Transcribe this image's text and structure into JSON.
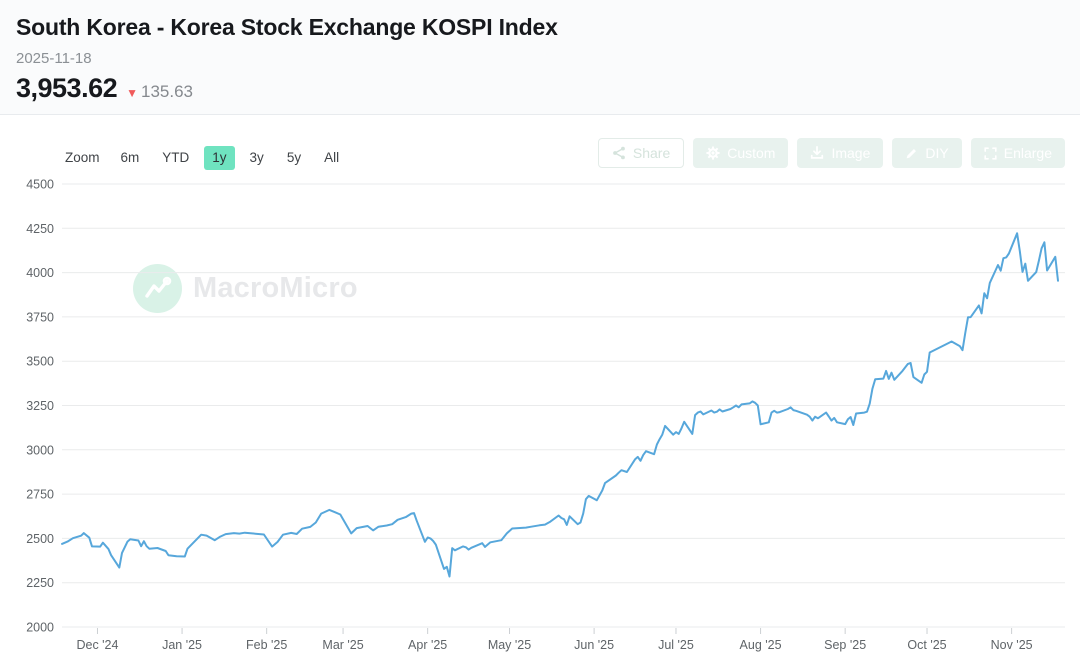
{
  "header": {
    "title": "South Korea - Korea Stock Exchange KOSPI Index",
    "date": "2025-11-18",
    "value": "3,953.62",
    "change_arrow": "▼",
    "change_value": "135.63",
    "change_color": "#f05a5a"
  },
  "toolbar": {
    "zoom_label": "Zoom",
    "ranges": [
      {
        "label": "6m",
        "active": false
      },
      {
        "label": "YTD",
        "active": false
      },
      {
        "label": "1y",
        "active": true
      },
      {
        "label": "3y",
        "active": false
      },
      {
        "label": "5y",
        "active": false
      },
      {
        "label": "All",
        "active": false
      }
    ],
    "active_range_color": "#6fe3c0"
  },
  "actions": [
    {
      "label": "Share",
      "icon": "share-icon"
    },
    {
      "label": "Custom",
      "icon": "gear-icon"
    },
    {
      "label": "Image",
      "icon": "download-icon"
    },
    {
      "label": "DIY",
      "icon": "pencil-icon"
    },
    {
      "label": "Enlarge",
      "icon": "expand-icon"
    }
  ],
  "watermark": {
    "text": "MacroMicro"
  },
  "chart_data": {
    "type": "line",
    "title": "South Korea - Korea Stock Exchange KOSPI Index",
    "xlabel": "",
    "ylabel": "",
    "ylim": [
      2000,
      4500
    ],
    "y_ticks": [
      4500,
      4250,
      4000,
      3750,
      3500,
      3250,
      3000,
      2750,
      2500,
      2250,
      2000
    ],
    "x_range": [
      "2024-11-18",
      "2025-11-18"
    ],
    "x_ticks": [
      {
        "date": "2024-12-01",
        "label": "Dec '24"
      },
      {
        "date": "2025-01-01",
        "label": "Jan '25"
      },
      {
        "date": "2025-02-01",
        "label": "Feb '25"
      },
      {
        "date": "2025-03-01",
        "label": "Mar '25"
      },
      {
        "date": "2025-04-01",
        "label": "Apr '25"
      },
      {
        "date": "2025-05-01",
        "label": "May '25"
      },
      {
        "date": "2025-06-01",
        "label": "Jun '25"
      },
      {
        "date": "2025-07-01",
        "label": "Jul '25"
      },
      {
        "date": "2025-08-01",
        "label": "Aug '25"
      },
      {
        "date": "2025-09-01",
        "label": "Sep '25"
      },
      {
        "date": "2025-10-01",
        "label": "Oct '25"
      },
      {
        "date": "2025-11-01",
        "label": "Nov '25"
      }
    ],
    "grid": true,
    "legend": false,
    "series": [
      {
        "name": "KOSPI Index",
        "color": "#57a7db",
        "points": [
          [
            "2024-11-18",
            2469
          ],
          [
            "2024-11-20",
            2482
          ],
          [
            "2024-11-22",
            2501
          ],
          [
            "2024-11-25",
            2515
          ],
          [
            "2024-11-26",
            2530
          ],
          [
            "2024-11-28",
            2504
          ],
          [
            "2024-11-29",
            2455
          ],
          [
            "2024-12-02",
            2454
          ],
          [
            "2024-12-03",
            2476
          ],
          [
            "2024-12-05",
            2441
          ],
          [
            "2024-12-06",
            2405
          ],
          [
            "2024-12-09",
            2335
          ],
          [
            "2024-12-10",
            2418
          ],
          [
            "2024-12-12",
            2482
          ],
          [
            "2024-12-13",
            2495
          ],
          [
            "2024-12-16",
            2488
          ],
          [
            "2024-12-17",
            2456
          ],
          [
            "2024-12-18",
            2484
          ],
          [
            "2024-12-19",
            2456
          ],
          [
            "2024-12-20",
            2442
          ],
          [
            "2024-12-23",
            2446
          ],
          [
            "2024-12-26",
            2429
          ],
          [
            "2024-12-27",
            2405
          ],
          [
            "2024-12-30",
            2399
          ],
          [
            "2025-01-02",
            2398
          ],
          [
            "2025-01-03",
            2442
          ],
          [
            "2025-01-06",
            2489
          ],
          [
            "2025-01-08",
            2521
          ],
          [
            "2025-01-10",
            2516
          ],
          [
            "2025-01-13",
            2490
          ],
          [
            "2025-01-15",
            2510
          ],
          [
            "2025-01-17",
            2524
          ],
          [
            "2025-01-20",
            2530
          ],
          [
            "2025-01-22",
            2527
          ],
          [
            "2025-01-24",
            2532
          ],
          [
            "2025-01-31",
            2522
          ],
          [
            "2025-02-03",
            2454
          ],
          [
            "2025-02-05",
            2480
          ],
          [
            "2025-02-07",
            2521
          ],
          [
            "2025-02-10",
            2531
          ],
          [
            "2025-02-12",
            2525
          ],
          [
            "2025-02-14",
            2555
          ],
          [
            "2025-02-17",
            2565
          ],
          [
            "2025-02-19",
            2590
          ],
          [
            "2025-02-21",
            2640
          ],
          [
            "2025-02-24",
            2661
          ],
          [
            "2025-02-26",
            2648
          ],
          [
            "2025-02-28",
            2635
          ],
          [
            "2025-03-04",
            2528
          ],
          [
            "2025-03-06",
            2558
          ],
          [
            "2025-03-10",
            2570
          ],
          [
            "2025-03-12",
            2545
          ],
          [
            "2025-03-14",
            2566
          ],
          [
            "2025-03-17",
            2573
          ],
          [
            "2025-03-19",
            2580
          ],
          [
            "2025-03-21",
            2605
          ],
          [
            "2025-03-24",
            2620
          ],
          [
            "2025-03-26",
            2640
          ],
          [
            "2025-03-27",
            2643
          ],
          [
            "2025-03-28",
            2600
          ],
          [
            "2025-03-31",
            2481
          ],
          [
            "2025-04-01",
            2505
          ],
          [
            "2025-04-02",
            2500
          ],
          [
            "2025-04-03",
            2486
          ],
          [
            "2025-04-04",
            2465
          ],
          [
            "2025-04-07",
            2328
          ],
          [
            "2025-04-08",
            2340
          ],
          [
            "2025-04-09",
            2285
          ],
          [
            "2025-04-10",
            2445
          ],
          [
            "2025-04-11",
            2433
          ],
          [
            "2025-04-14",
            2455
          ],
          [
            "2025-04-15",
            2450
          ],
          [
            "2025-04-16",
            2437
          ],
          [
            "2025-04-17",
            2447
          ],
          [
            "2025-04-21",
            2473
          ],
          [
            "2025-04-22",
            2452
          ],
          [
            "2025-04-24",
            2478
          ],
          [
            "2025-04-28",
            2490
          ],
          [
            "2025-04-30",
            2528
          ],
          [
            "2025-05-02",
            2556
          ],
          [
            "2025-05-07",
            2561
          ],
          [
            "2025-05-09",
            2566
          ],
          [
            "2025-05-12",
            2574
          ],
          [
            "2025-05-14",
            2578
          ],
          [
            "2025-05-16",
            2595
          ],
          [
            "2025-05-19",
            2629
          ],
          [
            "2025-05-20",
            2615
          ],
          [
            "2025-05-21",
            2608
          ],
          [
            "2025-05-22",
            2576
          ],
          [
            "2025-05-23",
            2625
          ],
          [
            "2025-05-26",
            2580
          ],
          [
            "2025-05-27",
            2590
          ],
          [
            "2025-05-28",
            2640
          ],
          [
            "2025-05-29",
            2721
          ],
          [
            "2025-05-30",
            2740
          ],
          [
            "2025-06-02",
            2715
          ],
          [
            "2025-06-04",
            2771
          ],
          [
            "2025-06-05",
            2812
          ],
          [
            "2025-06-09",
            2855
          ],
          [
            "2025-06-10",
            2871
          ],
          [
            "2025-06-11",
            2885
          ],
          [
            "2025-06-13",
            2875
          ],
          [
            "2025-06-16",
            2946
          ],
          [
            "2025-06-17",
            2960
          ],
          [
            "2025-06-18",
            2938
          ],
          [
            "2025-06-19",
            2970
          ],
          [
            "2025-06-20",
            2992
          ],
          [
            "2025-06-23",
            2975
          ],
          [
            "2025-06-24",
            3030
          ],
          [
            "2025-06-25",
            3060
          ],
          [
            "2025-06-26",
            3086
          ],
          [
            "2025-06-27",
            3135
          ],
          [
            "2025-06-30",
            3085
          ],
          [
            "2025-07-01",
            3100
          ],
          [
            "2025-07-02",
            3090
          ],
          [
            "2025-07-03",
            3120
          ],
          [
            "2025-07-04",
            3158
          ],
          [
            "2025-07-07",
            3090
          ],
          [
            "2025-07-08",
            3196
          ],
          [
            "2025-07-09",
            3210
          ],
          [
            "2025-07-10",
            3216
          ],
          [
            "2025-07-11",
            3200
          ],
          [
            "2025-07-14",
            3222
          ],
          [
            "2025-07-15",
            3210
          ],
          [
            "2025-07-16",
            3215
          ],
          [
            "2025-07-17",
            3228
          ],
          [
            "2025-07-18",
            3216
          ],
          [
            "2025-07-21",
            3230
          ],
          [
            "2025-07-22",
            3240
          ],
          [
            "2025-07-23",
            3250
          ],
          [
            "2025-07-24",
            3240
          ],
          [
            "2025-07-25",
            3256
          ],
          [
            "2025-07-28",
            3262
          ],
          [
            "2025-07-29",
            3273
          ],
          [
            "2025-07-30",
            3265
          ],
          [
            "2025-07-31",
            3250
          ],
          [
            "2025-08-01",
            3144
          ],
          [
            "2025-08-04",
            3155
          ],
          [
            "2025-08-05",
            3210
          ],
          [
            "2025-08-06",
            3220
          ],
          [
            "2025-08-07",
            3210
          ],
          [
            "2025-08-08",
            3213
          ],
          [
            "2025-08-11",
            3230
          ],
          [
            "2025-08-12",
            3240
          ],
          [
            "2025-08-13",
            3224
          ],
          [
            "2025-08-14",
            3220
          ],
          [
            "2025-08-18",
            3198
          ],
          [
            "2025-08-19",
            3187
          ],
          [
            "2025-08-20",
            3165
          ],
          [
            "2025-08-21",
            3187
          ],
          [
            "2025-08-22",
            3178
          ],
          [
            "2025-08-25",
            3210
          ],
          [
            "2025-08-26",
            3188
          ],
          [
            "2025-08-27",
            3165
          ],
          [
            "2025-08-28",
            3180
          ],
          [
            "2025-08-29",
            3155
          ],
          [
            "2025-09-01",
            3145
          ],
          [
            "2025-09-02",
            3172
          ],
          [
            "2025-09-03",
            3185
          ],
          [
            "2025-09-04",
            3140
          ],
          [
            "2025-09-05",
            3205
          ],
          [
            "2025-09-08",
            3210
          ],
          [
            "2025-09-09",
            3215
          ],
          [
            "2025-09-10",
            3260
          ],
          [
            "2025-09-11",
            3344
          ],
          [
            "2025-09-12",
            3398
          ],
          [
            "2025-09-15",
            3402
          ],
          [
            "2025-09-16",
            3445
          ],
          [
            "2025-09-17",
            3400
          ],
          [
            "2025-09-18",
            3435
          ],
          [
            "2025-09-19",
            3395
          ],
          [
            "2025-09-22",
            3445
          ],
          [
            "2025-09-24",
            3485
          ],
          [
            "2025-09-25",
            3490
          ],
          [
            "2025-09-26",
            3410
          ],
          [
            "2025-09-29",
            3378
          ],
          [
            "2025-09-30",
            3425
          ],
          [
            "2025-10-01",
            3440
          ],
          [
            "2025-10-02",
            3549
          ],
          [
            "2025-10-10",
            3611
          ],
          [
            "2025-10-13",
            3585
          ],
          [
            "2025-10-14",
            3562
          ],
          [
            "2025-10-15",
            3657
          ],
          [
            "2025-10-16",
            3748
          ],
          [
            "2025-10-17",
            3749
          ],
          [
            "2025-10-20",
            3815
          ],
          [
            "2025-10-21",
            3770
          ],
          [
            "2025-10-22",
            3883
          ],
          [
            "2025-10-23",
            3855
          ],
          [
            "2025-10-24",
            3942
          ],
          [
            "2025-10-27",
            4043
          ],
          [
            "2025-10-28",
            4011
          ],
          [
            "2025-10-29",
            4081
          ],
          [
            "2025-10-30",
            4086
          ],
          [
            "2025-10-31",
            4108
          ],
          [
            "2025-11-03",
            4222
          ],
          [
            "2025-11-04",
            4122
          ],
          [
            "2025-11-05",
            4004
          ],
          [
            "2025-11-06",
            4050
          ],
          [
            "2025-11-07",
            3954
          ],
          [
            "2025-11-10",
            4003
          ],
          [
            "2025-11-11",
            4068
          ],
          [
            "2025-11-12",
            4137
          ],
          [
            "2025-11-13",
            4171
          ],
          [
            "2025-11-14",
            4012
          ],
          [
            "2025-11-17",
            4089
          ],
          [
            "2025-11-18",
            3953.62
          ]
        ]
      }
    ]
  }
}
